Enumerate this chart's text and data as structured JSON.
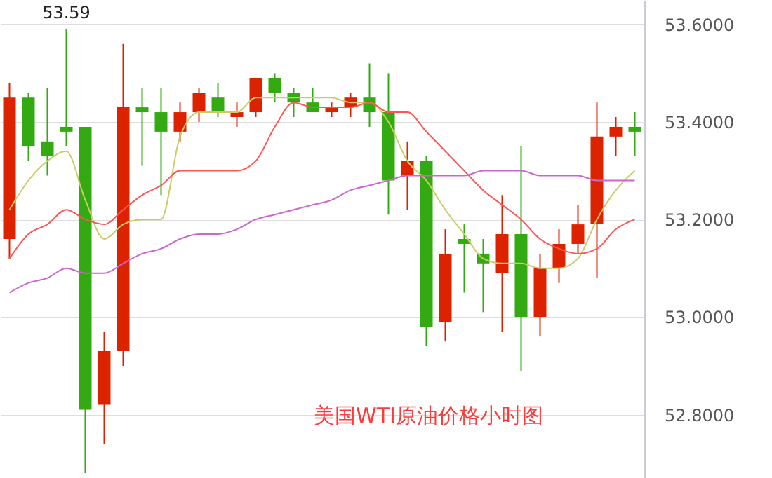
{
  "chart_data": {
    "type": "candlestick",
    "categories": [
      null,
      null,
      null,
      null,
      null,
      null,
      null,
      null,
      null,
      null,
      null,
      null,
      null,
      null,
      null,
      null,
      null,
      null,
      null,
      null,
      null,
      null,
      null,
      null,
      null,
      null,
      null,
      null,
      null,
      null,
      null,
      null,
      null,
      null
    ],
    "ohlc": [
      [
        53.16,
        53.48,
        53.12,
        53.45
      ],
      [
        53.45,
        53.46,
        53.32,
        53.35
      ],
      [
        53.36,
        53.47,
        53.29,
        53.33
      ],
      [
        53.39,
        53.59,
        53.35,
        53.38
      ],
      [
        53.39,
        53.39,
        52.68,
        52.81
      ],
      [
        52.82,
        52.97,
        52.74,
        52.93
      ],
      [
        52.93,
        53.56,
        52.9,
        53.43
      ],
      [
        53.43,
        53.47,
        53.31,
        53.42
      ],
      [
        53.42,
        53.47,
        53.25,
        53.38
      ],
      [
        53.38,
        53.44,
        53.36,
        53.42
      ],
      [
        53.42,
        53.47,
        53.4,
        53.46
      ],
      [
        53.45,
        53.48,
        53.41,
        53.42
      ],
      [
        53.41,
        53.44,
        53.39,
        53.42
      ],
      [
        53.42,
        53.49,
        53.41,
        53.49
      ],
      [
        53.49,
        53.5,
        53.44,
        53.46
      ],
      [
        53.46,
        53.47,
        53.41,
        53.44
      ],
      [
        53.44,
        53.47,
        53.42,
        53.42
      ],
      [
        53.42,
        53.44,
        53.41,
        53.43
      ],
      [
        53.43,
        53.46,
        53.41,
        53.45
      ],
      [
        53.45,
        53.52,
        53.39,
        53.42
      ],
      [
        53.42,
        53.5,
        53.21,
        53.28
      ],
      [
        53.29,
        53.36,
        53.22,
        53.32
      ],
      [
        53.32,
        53.33,
        52.94,
        52.98
      ],
      [
        52.99,
        53.18,
        52.95,
        53.13
      ],
      [
        53.16,
        53.19,
        53.05,
        53.15
      ],
      [
        53.13,
        53.16,
        53.01,
        53.11
      ],
      [
        53.09,
        53.25,
        52.97,
        53.17
      ],
      [
        53.17,
        53.35,
        52.89,
        53.0
      ],
      [
        53.0,
        53.13,
        52.96,
        53.1
      ],
      [
        53.1,
        53.18,
        53.07,
        53.15
      ],
      [
        53.15,
        53.23,
        53.13,
        53.19
      ],
      [
        53.19,
        53.44,
        53.08,
        53.37
      ],
      [
        53.37,
        53.41,
        53.33,
        53.39
      ],
      [
        53.39,
        53.42,
        53.33,
        53.38
      ]
    ],
    "colors": [
      "#dd2200",
      "#33aa11",
      "#33aa11",
      "#33aa11",
      "#33aa11",
      "#dd2200",
      "#dd2200",
      "#33aa11",
      "#33aa11",
      "#dd2200",
      "#dd2200",
      "#33aa11",
      "#dd2200",
      "#dd2200",
      "#33aa11",
      "#33aa11",
      "#33aa11",
      "#dd2200",
      "#dd2200",
      "#33aa11",
      "#33aa11",
      "#dd2200",
      "#33aa11",
      "#dd2200",
      "#33aa11",
      "#33aa11",
      "#dd2200",
      "#33aa11",
      "#dd2200",
      "#dd2200",
      "#dd2200",
      "#dd2200",
      "#dd2200",
      "#33aa11"
    ],
    "series": [
      {
        "type": "line",
        "color": "#cccc66",
        "values": [
          53.22,
          53.28,
          53.32,
          53.34,
          53.24,
          53.16,
          53.19,
          53.2,
          53.2,
          53.37,
          53.42,
          53.42,
          53.42,
          53.45,
          53.45,
          53.45,
          53.45,
          53.45,
          53.44,
          53.44,
          53.4,
          53.32,
          53.28,
          53.22,
          53.17,
          53.12,
          53.11,
          53.11,
          53.1,
          53.1,
          53.12,
          53.2,
          53.26,
          53.3
        ]
      },
      {
        "type": "line",
        "color": "#ff5555",
        "values": [
          53.12,
          53.17,
          53.19,
          53.22,
          53.2,
          53.19,
          53.22,
          53.25,
          53.27,
          53.3,
          53.3,
          53.3,
          53.3,
          53.32,
          53.39,
          53.44,
          53.43,
          53.43,
          53.43,
          53.44,
          53.42,
          53.42,
          53.38,
          53.34,
          53.3,
          53.26,
          53.23,
          53.2,
          53.16,
          53.14,
          53.13,
          53.14,
          53.18,
          53.2
        ]
      },
      {
        "type": "line",
        "color": "#cc66cc",
        "values": [
          53.05,
          53.07,
          53.08,
          53.1,
          53.09,
          53.09,
          53.11,
          53.13,
          53.14,
          53.16,
          53.17,
          53.17,
          53.18,
          53.2,
          53.21,
          53.22,
          53.23,
          53.24,
          53.26,
          53.27,
          53.28,
          53.29,
          53.29,
          53.29,
          53.29,
          53.3,
          53.3,
          53.3,
          53.29,
          53.29,
          53.29,
          53.28,
          53.28,
          53.28
        ]
      }
    ],
    "ylim": [
      52.67,
      53.65
    ],
    "yticks": [
      {
        "value": 52.8,
        "label": "52.8000"
      },
      {
        "value": 53.0,
        "label": "53.0000"
      },
      {
        "value": 53.2,
        "label": "53.2000"
      },
      {
        "value": 53.4,
        "label": "53.4000"
      },
      {
        "value": 53.6,
        "label": "53.6000"
      }
    ],
    "grid": "y",
    "tick_labels": "y",
    "annotations": [
      {
        "text": "53.59",
        "y": 53.59
      },
      "美国WTI原油价格小时图"
    ]
  }
}
